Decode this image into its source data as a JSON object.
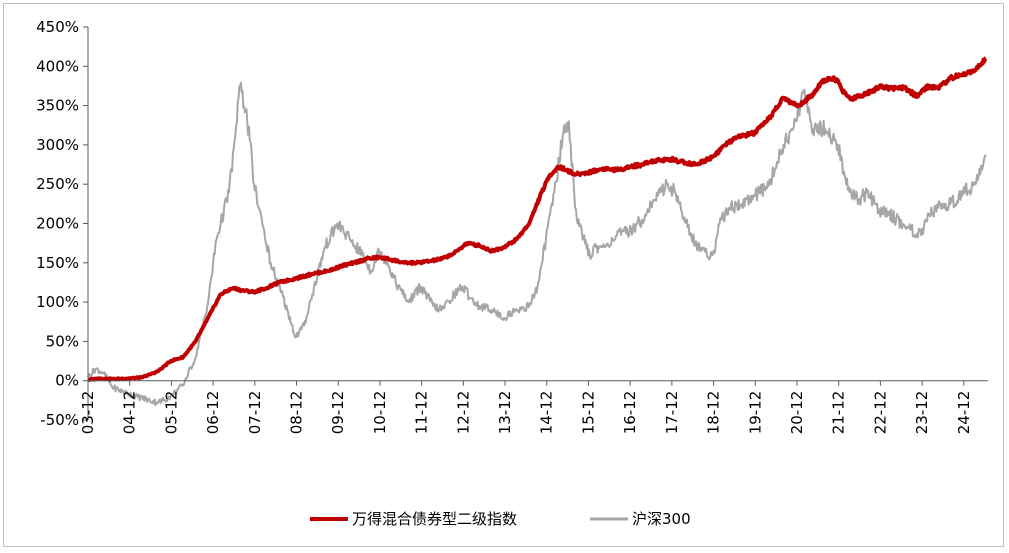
{
  "chart_data": {
    "type": "line",
    "title": "",
    "xlabel": "",
    "ylabel": "",
    "y_tick_labels": [
      "450%",
      "400%",
      "350%",
      "300%",
      "250%",
      "200%",
      "150%",
      "100%",
      "50%",
      "0%",
      "-50%"
    ],
    "y_ticks": [
      450,
      400,
      350,
      300,
      250,
      200,
      150,
      100,
      50,
      0,
      -50
    ],
    "ylim": [
      -50,
      450
    ],
    "x_tick_labels": [
      "03-12",
      "04-12",
      "05-12",
      "06-12",
      "07-12",
      "08-12",
      "09-12",
      "10-12",
      "11-12",
      "12-12",
      "13-12",
      "14-12",
      "15-12",
      "16-12",
      "17-12",
      "18-12",
      "19-12",
      "20-12",
      "21-12",
      "22-12",
      "23-12",
      "24-12"
    ],
    "x_ticks": [
      2003.92,
      2004.92,
      2005.92,
      2006.92,
      2007.92,
      2008.92,
      2009.92,
      2010.92,
      2011.92,
      2012.92,
      2013.92,
      2014.92,
      2015.92,
      2016.92,
      2017.92,
      2018.92,
      2019.92,
      2020.92,
      2021.92,
      2022.92,
      2023.92,
      2024.92
    ],
    "xlim": [
      2003.92,
      2025.5
    ],
    "grid": false,
    "legend_position": "bottom",
    "series": [
      {
        "name": "万得混合债券型二级指数",
        "color": "#c00000",
        "x": [
          2003.92,
          2004.2,
          2004.5,
          2004.9,
          2005.2,
          2005.4,
          2005.6,
          2005.9,
          2006.2,
          2006.5,
          2006.7,
          2006.9,
          2007.1,
          2007.4,
          2007.6,
          2007.9,
          2008.2,
          2008.5,
          2008.9,
          2009.3,
          2009.7,
          2010.0,
          2010.3,
          2010.6,
          2010.9,
          2011.2,
          2011.5,
          2011.8,
          2012.1,
          2012.4,
          2012.7,
          2013.0,
          2013.3,
          2013.6,
          2013.9,
          2014.2,
          2014.5,
          2014.8,
          2015.0,
          2015.2,
          2015.4,
          2015.6,
          2015.9,
          2016.3,
          2016.6,
          2016.9,
          2017.2,
          2017.5,
          2017.9,
          2018.2,
          2018.5,
          2018.9,
          2019.2,
          2019.5,
          2019.9,
          2020.2,
          2020.4,
          2020.6,
          2020.9,
          2021.1,
          2021.3,
          2021.5,
          2021.7,
          2021.9,
          2022.0,
          2022.2,
          2022.4,
          2022.7,
          2022.9,
          2023.2,
          2023.5,
          2023.8,
          2023.9,
          2024.1,
          2024.3,
          2024.6,
          2024.9,
          2025.2,
          2025.45
        ],
        "values": [
          1,
          3,
          2,
          3,
          4,
          8,
          12,
          25,
          30,
          50,
          70,
          90,
          110,
          118,
          115,
          113,
          118,
          125,
          130,
          136,
          140,
          146,
          150,
          155,
          157,
          154,
          150,
          150,
          152,
          155,
          162,
          175,
          172,
          165,
          170,
          180,
          200,
          240,
          262,
          272,
          268,
          262,
          265,
          270,
          268,
          272,
          275,
          280,
          282,
          278,
          275,
          285,
          300,
          310,
          315,
          330,
          345,
          360,
          350,
          355,
          365,
          380,
          385,
          382,
          370,
          358,
          362,
          368,
          375,
          372,
          372,
          362,
          368,
          375,
          372,
          385,
          390,
          395,
          410
        ]
      },
      {
        "name": "沪深300",
        "color": "#a6a6a6",
        "x": [
          2003.92,
          2004.1,
          2004.3,
          2004.5,
          2004.8,
          2005.1,
          2005.4,
          2005.6,
          2005.9,
          2006.2,
          2006.5,
          2006.8,
          2007.0,
          2007.3,
          2007.45,
          2007.55,
          2007.7,
          2007.8,
          2007.9,
          2008.1,
          2008.3,
          2008.5,
          2008.7,
          2008.9,
          2009.1,
          2009.3,
          2009.6,
          2009.9,
          2010.2,
          2010.5,
          2010.7,
          2010.9,
          2011.1,
          2011.3,
          2011.6,
          2011.9,
          2012.2,
          2012.4,
          2012.7,
          2012.9,
          2013.1,
          2013.3,
          2013.6,
          2013.9,
          2014.2,
          2014.5,
          2014.7,
          2014.9,
          2015.1,
          2015.3,
          2015.45,
          2015.6,
          2015.8,
          2015.95,
          2016.1,
          2016.3,
          2016.6,
          2016.9,
          2017.2,
          2017.5,
          2017.8,
          2018.0,
          2018.1,
          2018.3,
          2018.6,
          2018.9,
          2019.1,
          2019.3,
          2019.6,
          2019.9,
          2020.2,
          2020.4,
          2020.6,
          2020.9,
          2021.1,
          2021.3,
          2021.6,
          2021.9,
          2022.1,
          2022.4,
          2022.6,
          2022.9,
          2023.1,
          2023.3,
          2023.6,
          2023.9,
          2024.1,
          2024.3,
          2024.6,
          2024.9,
          2025.2,
          2025.45
        ],
        "values": [
          5,
          15,
          10,
          -8,
          -15,
          -20,
          -25,
          -28,
          -20,
          -5,
          30,
          100,
          180,
          240,
          310,
          375,
          345,
          305,
          250,
          200,
          150,
          120,
          90,
          55,
          70,
          110,
          170,
          200,
          180,
          160,
          140,
          165,
          150,
          125,
          100,
          120,
          95,
          90,
          110,
          120,
          105,
          95,
          90,
          80,
          90,
          95,
          120,
          180,
          240,
          310,
          330,
          220,
          180,
          160,
          170,
          170,
          185,
          190,
          205,
          230,
          250,
          240,
          225,
          195,
          165,
          160,
          205,
          220,
          225,
          235,
          245,
          270,
          300,
          330,
          370,
          320,
          320,
          300,
          250,
          230,
          240,
          215,
          215,
          205,
          195,
          185,
          210,
          220,
          225,
          240,
          250,
          285
        ]
      }
    ]
  }
}
